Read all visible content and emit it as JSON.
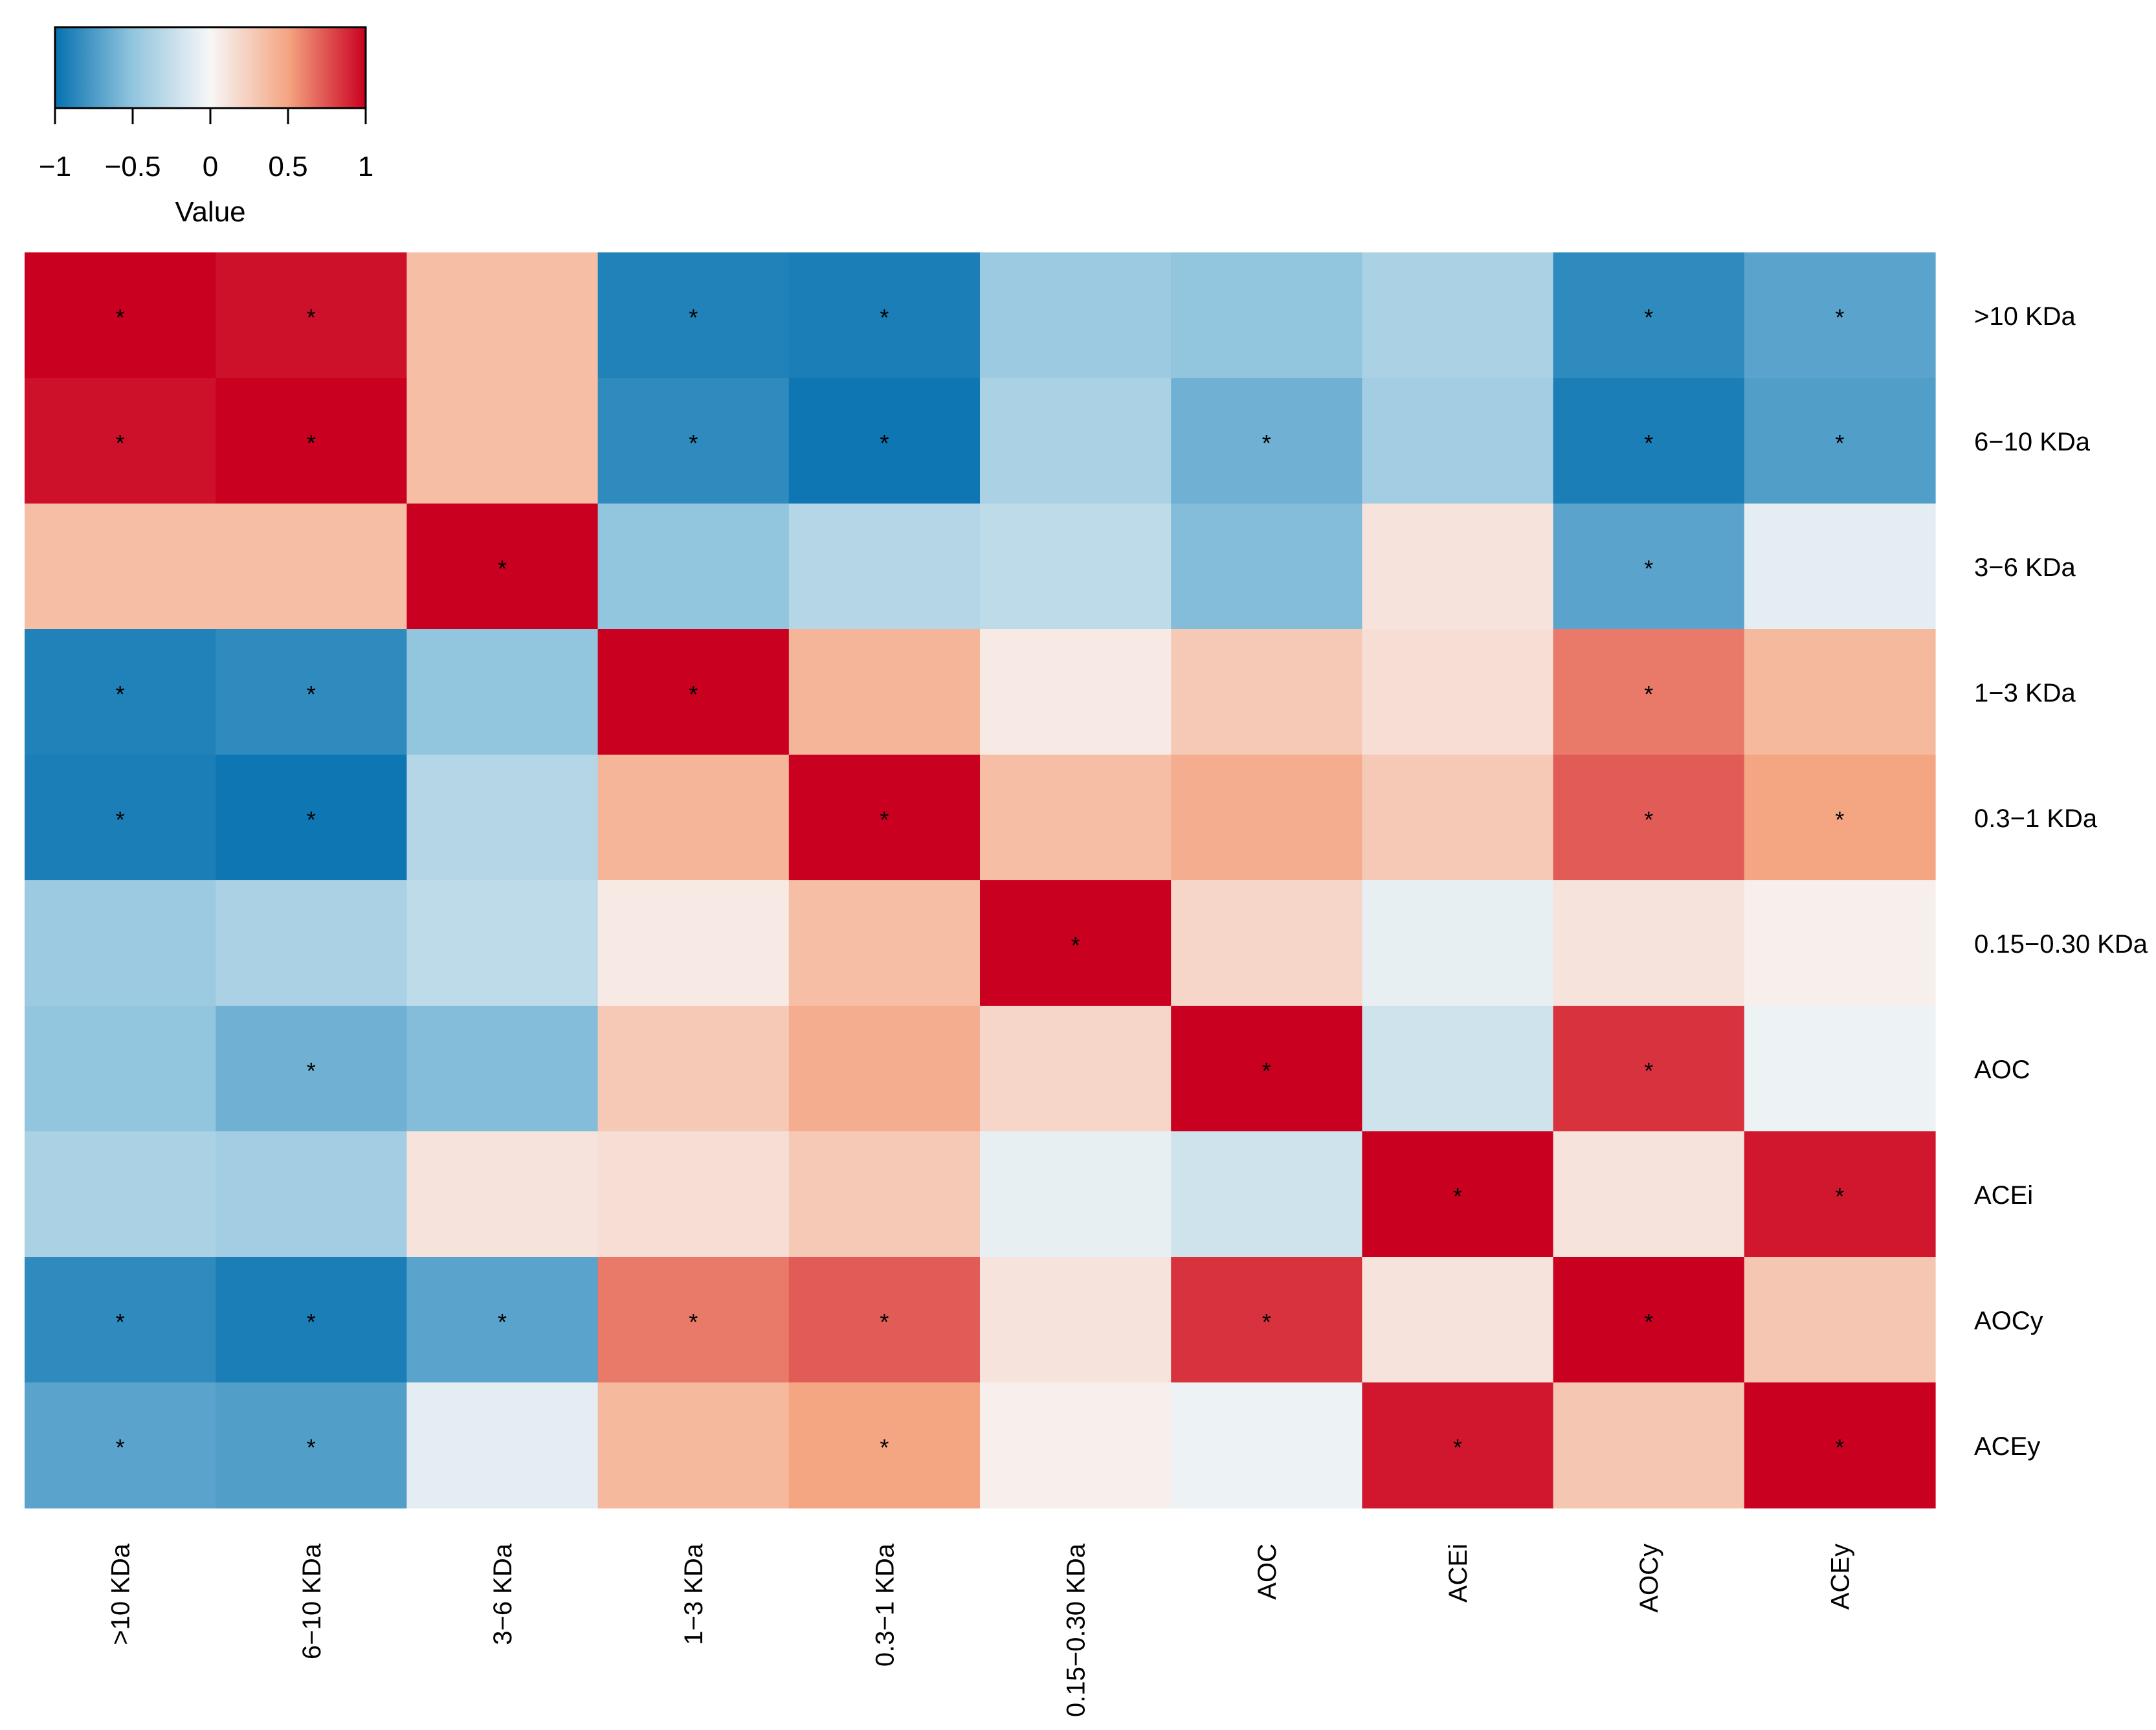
{
  "chart_data": {
    "type": "heatmap",
    "title": "",
    "rows": [
      ">10 KDa",
      "6−10 KDa",
      "3−6 KDa",
      "1−3 KDa",
      "0.3−1 KDa",
      "0.15−0.30 KDa",
      "AOC",
      "ACEi",
      "AOCy",
      "ACEy"
    ],
    "columns": [
      ">10 KDa",
      "6−10 KDa",
      "3−6 KDa",
      "1−3 KDa",
      "0.3−1 KDa",
      "0.15−0.30 KDa",
      "AOC",
      "ACEi",
      "AOCy",
      "ACEy"
    ],
    "values": [
      [
        1.0,
        0.95,
        0.35,
        -0.9,
        -0.92,
        -0.45,
        -0.5,
        -0.38,
        -0.85,
        -0.7
      ],
      [
        0.95,
        1.0,
        0.35,
        -0.85,
        -0.97,
        -0.38,
        -0.62,
        -0.42,
        -0.92,
        -0.73
      ],
      [
        0.35,
        0.35,
        1.0,
        -0.5,
        -0.33,
        -0.28,
        -0.55,
        0.12,
        -0.7,
        -0.1
      ],
      [
        -0.9,
        -0.85,
        -0.5,
        1.0,
        0.4,
        0.08,
        0.28,
        0.15,
        0.63,
        0.38
      ],
      [
        -0.92,
        -0.97,
        -0.33,
        0.4,
        1.0,
        0.35,
        0.45,
        0.28,
        0.72,
        0.5
      ],
      [
        -0.45,
        -0.38,
        -0.28,
        0.08,
        0.35,
        1.0,
        0.2,
        -0.08,
        0.12,
        0.05
      ],
      [
        -0.5,
        -0.62,
        -0.55,
        0.28,
        0.45,
        0.2,
        1.0,
        -0.2,
        0.85,
        -0.05
      ],
      [
        -0.38,
        -0.42,
        0.12,
        0.15,
        0.28,
        -0.08,
        -0.2,
        1.0,
        0.12,
        0.93
      ],
      [
        -0.85,
        -0.92,
        -0.7,
        0.63,
        0.72,
        0.12,
        0.85,
        0.12,
        1.0,
        0.3
      ],
      [
        -0.7,
        -0.73,
        -0.1,
        0.38,
        0.5,
        0.05,
        -0.05,
        0.93,
        0.3,
        1.0
      ]
    ],
    "significant": [
      [
        1,
        1,
        0,
        1,
        1,
        0,
        0,
        0,
        1,
        1
      ],
      [
        1,
        1,
        0,
        1,
        1,
        0,
        1,
        0,
        1,
        1
      ],
      [
        0,
        0,
        1,
        0,
        0,
        0,
        0,
        0,
        1,
        0
      ],
      [
        1,
        1,
        0,
        1,
        0,
        0,
        0,
        0,
        1,
        0
      ],
      [
        1,
        1,
        0,
        0,
        1,
        0,
        0,
        0,
        1,
        1
      ],
      [
        0,
        0,
        0,
        0,
        0,
        1,
        0,
        0,
        0,
        0
      ],
      [
        0,
        1,
        0,
        0,
        0,
        0,
        1,
        0,
        1,
        0
      ],
      [
        0,
        0,
        0,
        0,
        0,
        0,
        0,
        1,
        0,
        1
      ],
      [
        1,
        1,
        1,
        1,
        1,
        0,
        1,
        0,
        1,
        0
      ],
      [
        1,
        1,
        0,
        0,
        1,
        0,
        0,
        1,
        0,
        1
      ]
    ],
    "significance_marker": "*",
    "value_range": [
      -1,
      1
    ],
    "color_scale": {
      "stops": [
        -1,
        -0.5,
        0,
        0.5,
        1
      ],
      "colors": [
        "#0571b0",
        "#92c5de",
        "#f7f7f7",
        "#f4a582",
        "#ca0020"
      ]
    },
    "legend": {
      "title": "Value",
      "ticks": [
        -1,
        -0.5,
        0,
        0.5,
        1
      ],
      "tick_labels": [
        "−1",
        "−0.5",
        "0",
        "0.5",
        "1"
      ],
      "position": "top-left"
    }
  }
}
